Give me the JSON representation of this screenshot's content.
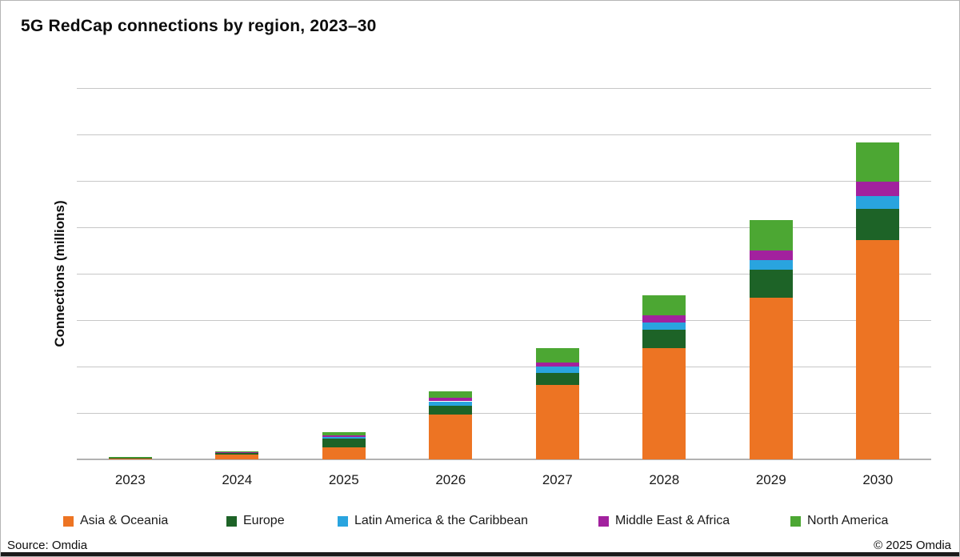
{
  "title": "5G RedCap connections by region, 2023–30",
  "footer": {
    "source": "Source: Omdia",
    "copyright": "© 2025 Omdia"
  },
  "chart_data": {
    "type": "bar",
    "stacked": true,
    "title": "5G RedCap connections by region, 2023–30",
    "xlabel": "",
    "ylabel": "Connections (millions)",
    "categories": [
      "2023",
      "2024",
      "2025",
      "2026",
      "2027",
      "2028",
      "2029",
      "2030"
    ],
    "series": [
      {
        "name": "Asia & Oceania",
        "color": "#ED7423",
        "values": [
          1,
          5,
          13,
          48,
          80,
          120,
          174,
          236
        ]
      },
      {
        "name": "Europe",
        "color": "#1D6327",
        "values": [
          1.5,
          2.5,
          9,
          10,
          13,
          20,
          30,
          34
        ]
      },
      {
        "name": "Latin America & the Caribbean",
        "color": "#29A4DF",
        "values": [
          0.1,
          0.3,
          2,
          4.5,
          7,
          7,
          10.5,
          13.5
        ]
      },
      {
        "name": "Middle East & Africa",
        "color": "#A2219E",
        "values": [
          0.1,
          0.2,
          1.5,
          3.5,
          4.5,
          8,
          10.5,
          15.5
        ]
      },
      {
        "name": "North America",
        "color": "#4CA733",
        "values": [
          0.3,
          1,
          4,
          7.5,
          15,
          22,
          33,
          42
        ]
      }
    ],
    "ylim": [
      0,
      400
    ],
    "gridline_step": 50,
    "grid": true,
    "y_axis_unlabeled": true,
    "legend_position": "bottom"
  }
}
